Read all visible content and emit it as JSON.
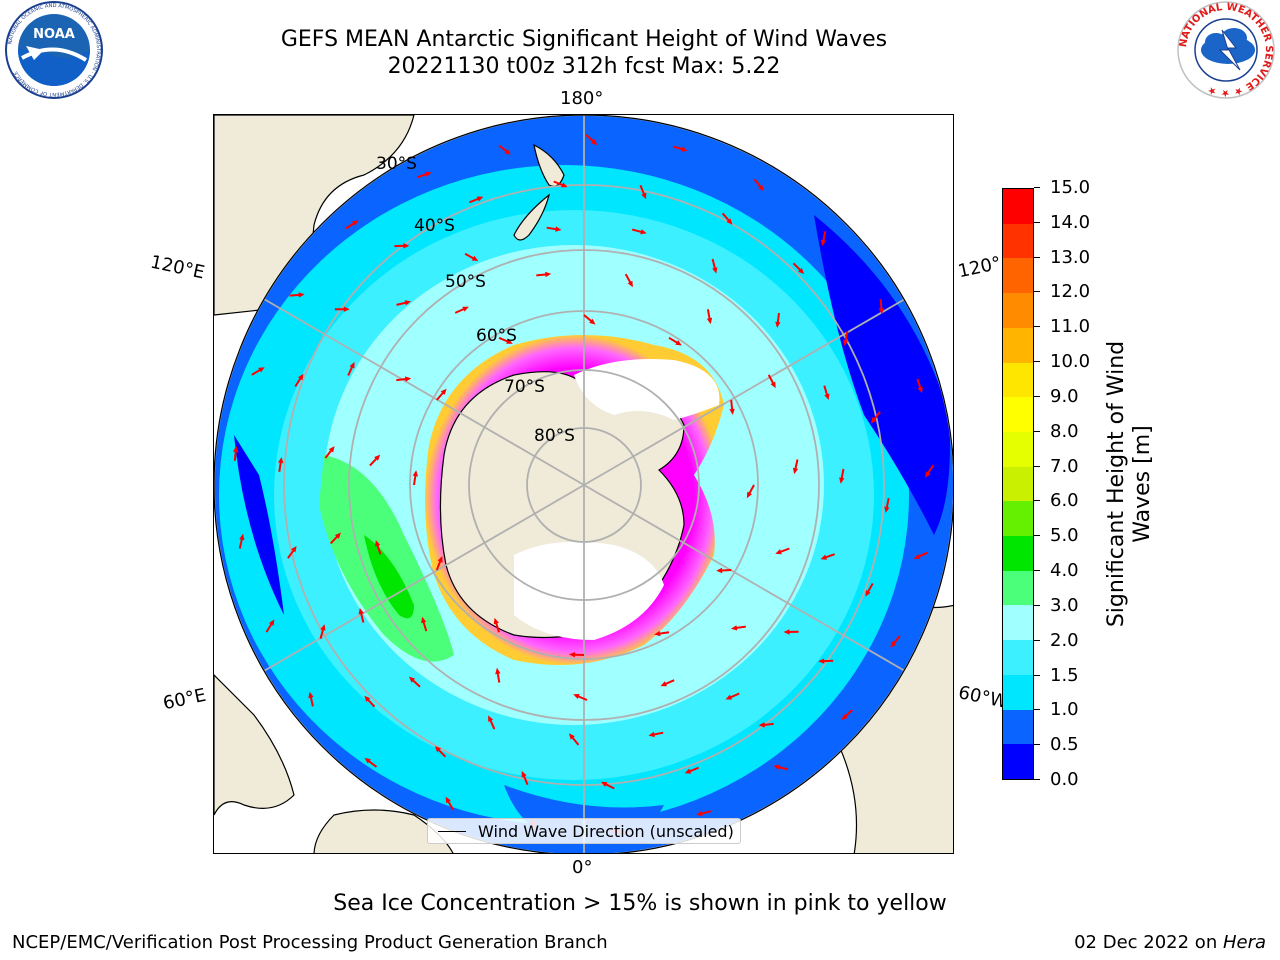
{
  "header": {
    "title_line1": "GEFS MEAN Antarctic Significant Height of Wind Waves",
    "title_line2": "20221130 t00z 312h fcst   Max: 5.22"
  },
  "logos": {
    "left": "NOAA",
    "right": "NATIONAL WEATHER SERVICE"
  },
  "map": {
    "projection": "south-polar-stereographic",
    "longitude_labels": {
      "top": "180°",
      "left_upper": "120°E",
      "right_upper": "120°",
      "left_lower": "60°E",
      "right_lower": "60°W",
      "bottom": "0°"
    },
    "latitude_labels": [
      "30°S",
      "40°S",
      "50°S",
      "60°S",
      "70°S",
      "80°S"
    ],
    "legend_label": "Wind Wave Direction (unscaled)",
    "arrow_color": "#ff0000",
    "land_color": "#efebd8",
    "sea_ice_color_range": [
      "#ff00ff",
      "#ffff00"
    ]
  },
  "colorbar": {
    "label": "Significant Height of Wind Waves [m]",
    "label_line1": "Significant Height of Wind",
    "label_line2": "Waves [m]",
    "ticks": [
      "0.0",
      "0.5",
      "1.0",
      "1.5",
      "2.0",
      "3.0",
      "4.0",
      "5.0",
      "6.0",
      "7.0",
      "8.0",
      "9.0",
      "10.0",
      "11.0",
      "12.0",
      "13.0",
      "14.0",
      "15.0"
    ],
    "colors": [
      "#0000ff",
      "#0a64ff",
      "#00e6ff",
      "#3cf0ff",
      "#a0ffff",
      "#4cff7a",
      "#00e600",
      "#64f000",
      "#c8f000",
      "#e6ff00",
      "#ffff00",
      "#ffe600",
      "#ffb400",
      "#ff8c00",
      "#ff6400",
      "#ff3200",
      "#ff0000"
    ]
  },
  "note": "Sea Ice Concentration > 15% is shown in pink to yellow",
  "footer": {
    "left": "NCEP/EMC/Verification Post Processing Product Generation Branch",
    "right_date": "02 Dec 2022 on ",
    "right_host": "Hera"
  }
}
